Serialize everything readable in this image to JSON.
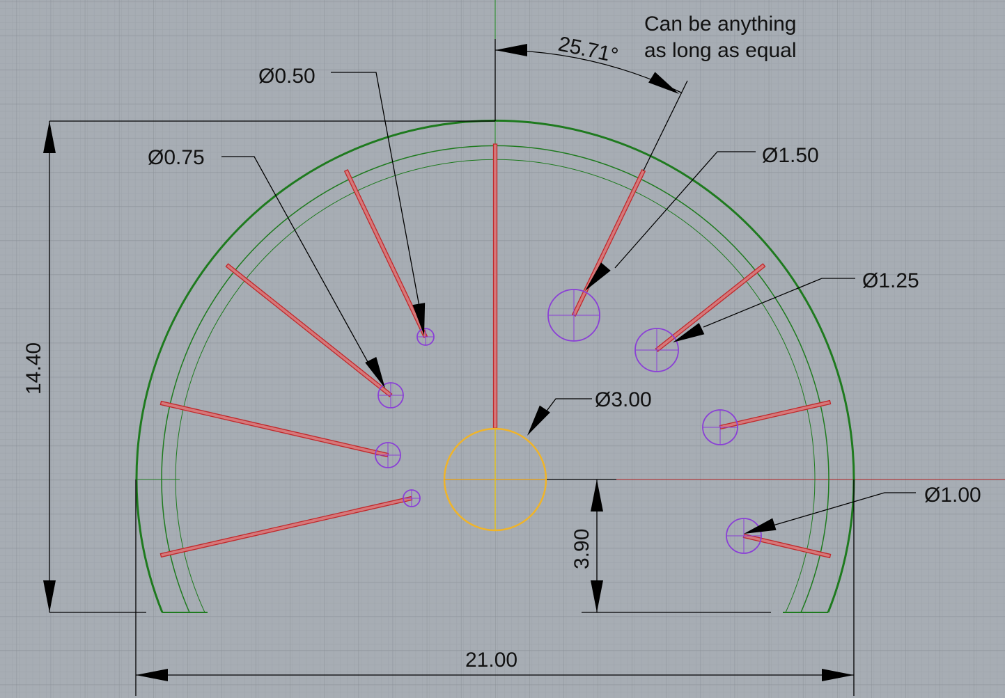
{
  "viewport": "CAD top view",
  "colors": {
    "background": "#a7adb4",
    "grid_minor": "#9ca2a9",
    "grid_major": "#8b9198",
    "rim": "#1e7a1e",
    "spoke": "#c0282b",
    "hole": "#8a3fd6",
    "hub": "#f0b429",
    "dimension": "#000000"
  },
  "annotations": {
    "note_line1": "Can be anything",
    "note_line2": "as long as equal",
    "angle": "25.71°"
  },
  "dimensions": {
    "height": "14.40",
    "hub_offset": "3.90",
    "width": "21.00",
    "hub_diameter": "Ø3.00",
    "hole_050": "Ø0.50",
    "hole_075": "Ø0.75",
    "hole_150": "Ø1.50",
    "hole_125": "Ø1.25",
    "hole_100": "Ø1.00"
  }
}
